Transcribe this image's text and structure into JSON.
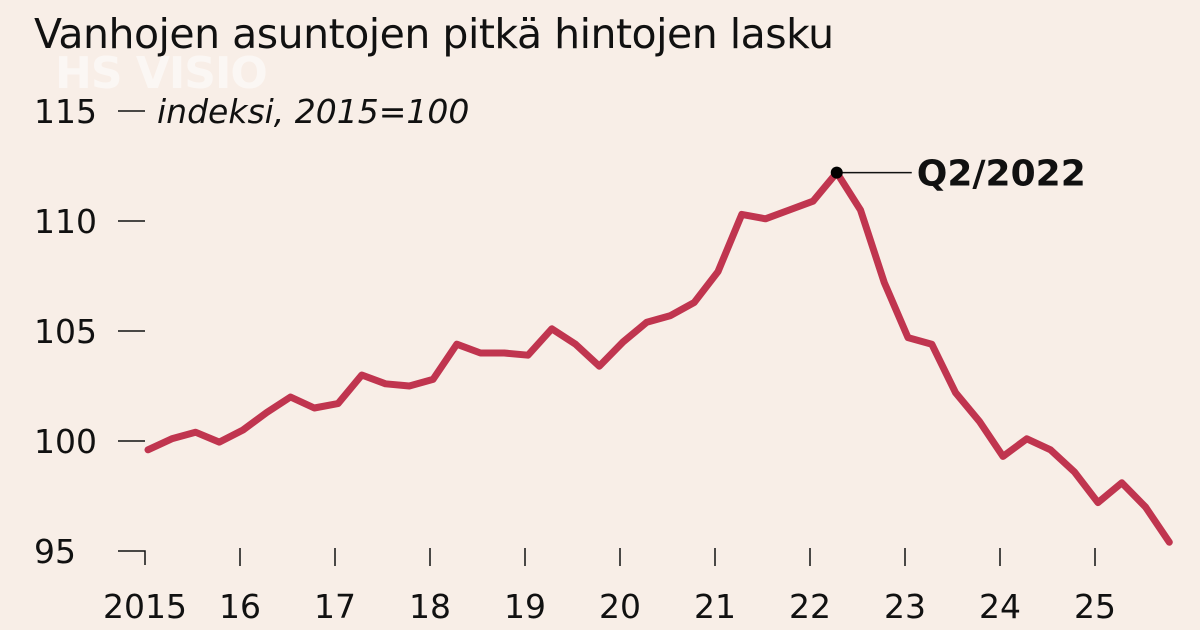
{
  "title": "Vanhojen asuntojen pitkä hintojen lasku",
  "watermark": "HS VISIO",
  "chart_data": {
    "type": "line",
    "title": "Vanhojen asuntojen pitkä hintojen lasku",
    "ylabel": "indeksi, 2015=100",
    "ylim": [
      95,
      115
    ],
    "yticks": [
      "115",
      "110",
      "105",
      "100",
      "95"
    ],
    "ytick_values": [
      115,
      110,
      105,
      100,
      95
    ],
    "xticks": [
      "2015",
      "16",
      "17",
      "18",
      "19",
      "20",
      "21",
      "22",
      "23",
      "24",
      "25"
    ],
    "grid": false,
    "line_color": "#c0354f",
    "annotation": {
      "label": "Q2/2022",
      "x": "2022Q2",
      "y": 112.2
    },
    "x": [
      "2015Q1",
      "2015Q2",
      "2015Q3",
      "2015Q4",
      "2016Q1",
      "2016Q2",
      "2016Q3",
      "2016Q4",
      "2017Q1",
      "2017Q2",
      "2017Q3",
      "2017Q4",
      "2018Q1",
      "2018Q2",
      "2018Q3",
      "2018Q4",
      "2019Q1",
      "2019Q2",
      "2019Q3",
      "2019Q4",
      "2020Q1",
      "2020Q2",
      "2020Q3",
      "2020Q4",
      "2021Q1",
      "2021Q2",
      "2021Q3",
      "2021Q4",
      "2022Q1",
      "2022Q2",
      "2022Q3",
      "2022Q4",
      "2023Q1",
      "2023Q2",
      "2023Q3",
      "2023Q4",
      "2024Q1",
      "2024Q2",
      "2024Q3",
      "2024Q4",
      "2025Q1",
      "2025Q2",
      "2025Q3",
      "2025Q4"
    ],
    "values": [
      99.6,
      100.1,
      100.4,
      99.95,
      100.5,
      101.3,
      102.0,
      101.5,
      101.7,
      103.0,
      102.6,
      102.5,
      102.8,
      104.4,
      104.0,
      104.0,
      103.9,
      105.1,
      104.4,
      103.4,
      104.5,
      105.4,
      105.7,
      106.3,
      107.7,
      110.3,
      110.1,
      110.5,
      110.9,
      112.2,
      110.5,
      107.2,
      104.7,
      104.4,
      102.2,
      100.9,
      99.3,
      100.1,
      99.6,
      98.6,
      97.2,
      98.1,
      97.0,
      95.4
    ]
  }
}
